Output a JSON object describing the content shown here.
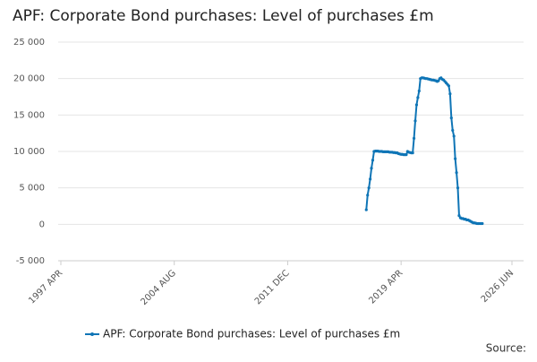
{
  "chart_data": {
    "type": "line",
    "title": "APF: Corporate Bond purchases: Level of purchases £m",
    "source": "Source:",
    "x": [
      "2017-01",
      "2017-02",
      "2017-03",
      "2017-04",
      "2017-05",
      "2017-06",
      "2017-07",
      "2017-08",
      "2017-09",
      "2017-10",
      "2017-11",
      "2017-12",
      "2018-01",
      "2018-02",
      "2018-03",
      "2018-04",
      "2018-05",
      "2018-06",
      "2018-07",
      "2018-08",
      "2018-09",
      "2018-10",
      "2018-11",
      "2018-12",
      "2019-01",
      "2019-02",
      "2019-03",
      "2019-04",
      "2019-05",
      "2019-06",
      "2019-07",
      "2019-08",
      "2019-09",
      "2019-10",
      "2019-11",
      "2019-12",
      "2020-01",
      "2020-02",
      "2020-03",
      "2020-04",
      "2020-05",
      "2020-06",
      "2020-07",
      "2020-08",
      "2020-09",
      "2020-10",
      "2020-11",
      "2020-12",
      "2021-01",
      "2021-02",
      "2021-03",
      "2021-04",
      "2021-05",
      "2021-06",
      "2021-07",
      "2021-08",
      "2021-09",
      "2021-10",
      "2021-11",
      "2021-12",
      "2022-01",
      "2022-02",
      "2022-03",
      "2022-04",
      "2022-05",
      "2022-06",
      "2022-07",
      "2022-08",
      "2022-09",
      "2022-10",
      "2022-11",
      "2022-12",
      "2023-01",
      "2023-02",
      "2023-03",
      "2023-04",
      "2023-05",
      "2023-06",
      "2023-07",
      "2023-08",
      "2023-09",
      "2023-10",
      "2023-11",
      "2023-12",
      "2024-01",
      "2024-02",
      "2024-03",
      "2024-04",
      "2024-05",
      "2024-06",
      "2024-07"
    ],
    "series": [
      {
        "name": "APF: Corporate Bond purchases: Level of purchases £m",
        "color": "#0f75b6",
        "values": [
          2000,
          4000,
          5000,
          6200,
          7700,
          8800,
          10000,
          10050,
          10050,
          10050,
          10000,
          10000,
          10000,
          9950,
          9950,
          9950,
          9950,
          9950,
          9900,
          9900,
          9900,
          9850,
          9850,
          9800,
          9800,
          9700,
          9650,
          9600,
          9600,
          9550,
          9550,
          9550,
          10000,
          9900,
          9850,
          9800,
          9800,
          11800,
          14200,
          16400,
          17400,
          18300,
          20000,
          20100,
          20100,
          20050,
          20000,
          20000,
          19950,
          19900,
          19850,
          19800,
          19800,
          19750,
          19700,
          19600,
          19700,
          20000,
          20100,
          19900,
          19800,
          19600,
          19400,
          19200,
          19000,
          17900,
          14600,
          12900,
          12100,
          9000,
          7100,
          5000,
          1200,
          900,
          800,
          800,
          700,
          700,
          600,
          600,
          500,
          400,
          300,
          200,
          200,
          150,
          100,
          100,
          100,
          100,
          100
        ]
      }
    ],
    "xlim": [
      "1997-04",
      "2026-06"
    ],
    "xticks": [
      {
        "value": "1997-04",
        "label": "1997 APR"
      },
      {
        "value": "2004-08",
        "label": "2004 AUG"
      },
      {
        "value": "2011-12",
        "label": "2011 DEC"
      },
      {
        "value": "2019-04",
        "label": "2019 APR"
      },
      {
        "value": "2026-06",
        "label": "2026 JUN"
      }
    ],
    "ylim": [
      -5000,
      25000
    ],
    "yticks": [
      {
        "value": -5000,
        "label": "-5 000"
      },
      0,
      {
        "value": 5000,
        "label": "5 000"
      },
      {
        "value": 10000,
        "label": "10 000"
      },
      {
        "value": 15000,
        "label": "15 000"
      },
      {
        "value": 20000,
        "label": "20 000"
      },
      {
        "value": 25000,
        "label": "25 000"
      }
    ],
    "grid": true,
    "legend": "bottom"
  }
}
